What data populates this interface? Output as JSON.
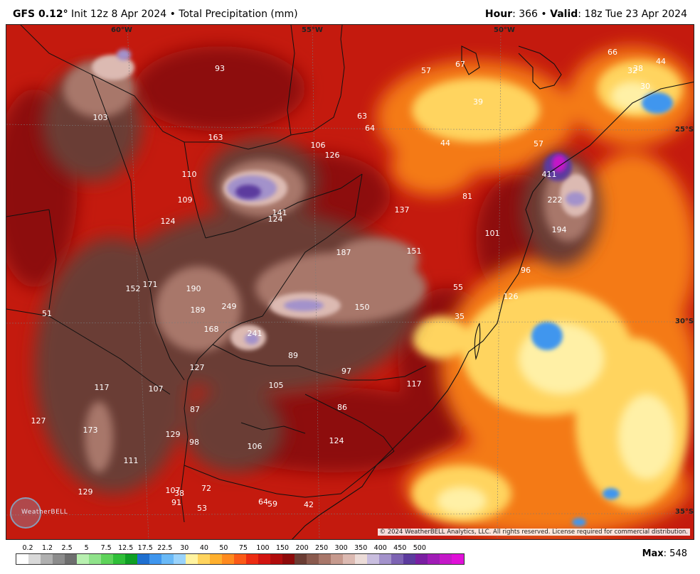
{
  "header": {
    "model": "GFS 0.12",
    "degree": "°",
    "init": "Init 12z 8 Apr 2024",
    "bullet": "•",
    "product": "Total Precipitation (mm)",
    "hour_label": "Hour",
    "hour_value": ": 366",
    "valid_label": "Valid",
    "valid_value": ": 18z Tue 23 Apr 2024"
  },
  "grid_labels": {
    "lon_60": "60°W",
    "lon_55": "55°W",
    "lon_50": "50°W",
    "lat_25": "25°S",
    "lat_30": "30°S",
    "lat_35": "35°S"
  },
  "copyright": "© 2024 WeatherBELL Analytics, LLC. All rights reserved. License required for commercial distribution.",
  "logo_text": "WeatherBELL",
  "max_label": "Max",
  "max_value": ": 548",
  "colorbar": {
    "ticks": [
      "0.2",
      "1.2",
      "2.5",
      "5",
      "7.5",
      "12.5",
      "17.5",
      "22.5",
      "30",
      "40",
      "50",
      "75",
      "100",
      "150",
      "200",
      "250",
      "300",
      "350",
      "400",
      "450",
      "500"
    ],
    "colors": [
      "#ffffff",
      "#d9d9d9",
      "#b0b0b0",
      "#8c8c8c",
      "#6e6e6e",
      "#b8f0b0",
      "#8fe28a",
      "#5ed35a",
      "#2fbf38",
      "#0f9f25",
      "#1f6fd0",
      "#3f96ee",
      "#69b9f7",
      "#9ad3fb",
      "#fff3a0",
      "#ffd45e",
      "#ffb02e",
      "#ff8a1e",
      "#fb5a17",
      "#ec2c12",
      "#d11410",
      "#b00c0c",
      "#8d0a0a",
      "#6b3d34",
      "#8a5a4e",
      "#a8776a",
      "#c69a8e",
      "#dcbab2",
      "#ecdcd8",
      "#c9bedf",
      "#a392cb",
      "#7d63b3",
      "#5c3b9e",
      "#7a1fa2",
      "#a01cb6",
      "#c418c8",
      "#e010d8"
    ]
  },
  "values": [
    "93",
    "57",
    "67",
    "66",
    "32",
    "38",
    "44",
    "30",
    "103",
    "63",
    "64",
    "39",
    "163",
    "106",
    "126",
    "44",
    "57",
    "110",
    "411",
    "109",
    "81",
    "222",
    "124",
    "141",
    "124",
    "137",
    "101",
    "194",
    "187",
    "151",
    "96",
    "152",
    "171",
    "190",
    "55",
    "126",
    "189",
    "249",
    "150",
    "35",
    "51",
    "168",
    "241",
    "89",
    "97",
    "127",
    "117",
    "117",
    "107",
    "105",
    "86",
    "87",
    "127",
    "173",
    "129",
    "98",
    "106",
    "124",
    "111",
    "72",
    "107",
    "38",
    "129",
    "91",
    "64",
    "59",
    "42",
    "53"
  ],
  "map_colors": {
    "background": "#c41a0e",
    "deep_red": "#8d0a0a",
    "orange": "#f47a17",
    "yellow": "#ffd45e",
    "pale_yellow": "#fff0a6",
    "brown": "#6b3d34",
    "light_brown": "#a8776a",
    "pink": "#dcbab2",
    "lavender": "#a392cb",
    "purple": "#5c3b9e",
    "magenta": "#c418c8",
    "blue": "#3f96ee"
  }
}
